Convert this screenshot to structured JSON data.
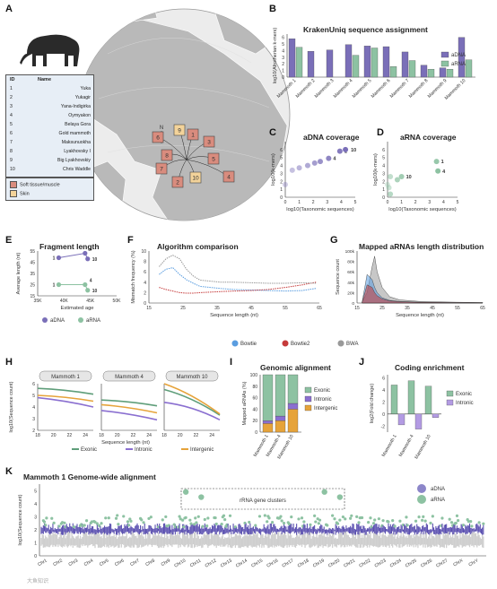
{
  "panel_labels": [
    "A",
    "B",
    "C",
    "D",
    "E",
    "F",
    "G",
    "H",
    "I",
    "J",
    "K"
  ],
  "panelA": {
    "header_id": "ID",
    "header_name": "Name",
    "sites": [
      {
        "id": "1",
        "name": "Yuka"
      },
      {
        "id": "2",
        "name": "Yukagir"
      },
      {
        "id": "3",
        "name": "Yana-Indigirka"
      },
      {
        "id": "4",
        "name": "Oymyakon"
      },
      {
        "id": "5",
        "name": "Belaya Gora"
      },
      {
        "id": "6",
        "name": "Gold mammoth"
      },
      {
        "id": "7",
        "name": "Maksunuokha"
      },
      {
        "id": "8",
        "name": "Lyakhovsky I"
      },
      {
        "id": "9",
        "name": "Big Lyakhovskiy"
      },
      {
        "id": "10",
        "name": "Chris Waddle"
      }
    ],
    "sample_types": [
      "Soft tissue/muscle",
      "Skin"
    ],
    "compass": "N",
    "colors": {
      "soft_tissue": "#d98c7e",
      "skin": "#f3d39a",
      "map_land": "#b9b9b9",
      "map_sea": "#ececec"
    }
  },
  "panelB": {
    "title": "KrakenUniq sequence assignment",
    "ylabel": "log10(Afrotherian k-mers)",
    "legend": [
      "aDNA",
      "aRNA"
    ],
    "chart_data": {
      "type": "bar",
      "categories": [
        "Mammoth 1",
        "Mammoth 2",
        "Mammoth 3",
        "Mammoth 4",
        "Mammoth 5",
        "Mammoth 6",
        "Mammoth 7",
        "Mammoth 8",
        "Mammoth 9",
        "Mammoth 10"
      ],
      "series": [
        {
          "name": "aDNA",
          "values": [
            5.8,
            3.9,
            4.1,
            4.9,
            4.7,
            4.6,
            3.8,
            1.8,
            1.4,
            6.0
          ]
        },
        {
          "name": "aRNA",
          "values": [
            4.5,
            null,
            null,
            3.3,
            4.4,
            1.6,
            2.5,
            1.2,
            1.2,
            2.6
          ]
        }
      ],
      "yticks": [
        0,
        1,
        2,
        3,
        4,
        5,
        6
      ],
      "ylim": [
        0,
        6.5
      ]
    }
  },
  "panelC": {
    "title": "aDNA coverage",
    "ylabel": "log10(k-mers)",
    "xlabel": "log10(Taxonomic sequences)",
    "chart_data": {
      "type": "scatter",
      "x": [
        0,
        0.5,
        1,
        1.6,
        2.1,
        2.5,
        3.1,
        3.9,
        4.3
      ],
      "y": [
        1.6,
        3.4,
        3.7,
        4.0,
        4.3,
        4.5,
        4.9,
        5.8,
        6.0
      ],
      "labels": [
        "",
        "",
        "",
        "",
        "",
        "",
        "4",
        "1",
        "10"
      ],
      "xticks": [
        0,
        1,
        2,
        3,
        4,
        5
      ],
      "yticks": [
        0,
        1,
        2,
        3,
        4,
        5,
        6
      ],
      "xlim": [
        0,
        5
      ],
      "ylim": [
        0,
        7
      ]
    }
  },
  "panelD": {
    "title": "aRNA coverage",
    "ylabel": "log10(k-mers)",
    "xlabel": "log10(Taxonomic sequences)",
    "chart_data": {
      "type": "scatter",
      "x": [
        0,
        0.1,
        0.2,
        0.2,
        0.7,
        1.0,
        3.5,
        3.6
      ],
      "y": [
        1.6,
        1.2,
        2.6,
        0.4,
        2.2,
        2.6,
        4.5,
        3.3
      ],
      "labels": [
        "",
        "",
        "",
        "",
        "",
        "10",
        "1",
        "4"
      ],
      "xticks": [
        0,
        1,
        2,
        3,
        4,
        5
      ],
      "yticks": [
        0,
        1,
        2,
        3,
        4,
        5,
        6
      ],
      "xlim": [
        0,
        5
      ],
      "ylim": [
        0,
        7
      ]
    }
  },
  "panelE": {
    "title": "Fragment length",
    "ylabel": "Average length (nt)",
    "xlabel": "Estimated age",
    "legend": [
      "aDNA",
      "aRNA"
    ],
    "chart_data": {
      "type": "line",
      "xticks": [
        "35K",
        "40K",
        "45K",
        "50K"
      ],
      "yticks": [
        15,
        25,
        35,
        45,
        55
      ],
      "xlim": [
        35000,
        50000
      ],
      "ylim": [
        15,
        55
      ],
      "series": [
        {
          "name": "aDNA",
          "points": [
            [
              39000,
              49
            ],
            [
              44000,
              53
            ],
            [
              44500,
              48
            ]
          ],
          "labels": [
            "1",
            "4",
            "10"
          ]
        },
        {
          "name": "aRNA",
          "points": [
            [
              39000,
              25
            ],
            [
              44000,
              25
            ],
            [
              44500,
              20
            ]
          ],
          "labels": [
            "1",
            "4",
            "10"
          ]
        }
      ]
    }
  },
  "panelF": {
    "title": "Algorithm comparison",
    "ylabel": "Mismatch frequency (%)",
    "xlabel": "Sequence length (nt)",
    "legend": [
      "Bowtie",
      "Bowtie2",
      "BWA"
    ],
    "chart_data": {
      "type": "line",
      "xticks": [
        15,
        25,
        35,
        45,
        55,
        65
      ],
      "yticks": [
        0,
        2,
        4,
        6,
        8,
        10
      ],
      "xlim": [
        15,
        65
      ],
      "ylim": [
        0,
        10
      ],
      "x": [
        18,
        20,
        22,
        24,
        26,
        28,
        30,
        33,
        36,
        40,
        45,
        50,
        55,
        60,
        64
      ],
      "series": [
        {
          "name": "Bowtie",
          "values": [
            5.5,
            6.5,
            6.8,
            5.5,
            4.5,
            3.8,
            3.2,
            3.0,
            2.8,
            2.6,
            2.5,
            2.4,
            2.3,
            2.4,
            2.8
          ]
        },
        {
          "name": "Bowtie2",
          "values": [
            3.0,
            2.6,
            2.3,
            2.0,
            1.9,
            1.9,
            2.0,
            2.1,
            2.2,
            2.3,
            2.4,
            2.6,
            3.0,
            3.5,
            4.0
          ]
        },
        {
          "name": "BWA",
          "values": [
            7.0,
            8.5,
            9.2,
            8.5,
            6.5,
            5.2,
            4.4,
            4.2,
            4.0,
            4.0,
            3.9,
            3.8,
            3.8,
            3.9,
            3.8
          ]
        }
      ]
    }
  },
  "panelG": {
    "title": "Mapped aRNAs length distribution",
    "ylabel": "Sequence count",
    "xlabel": "Sequence length (nt)",
    "chart_data": {
      "type": "area",
      "xticks": [
        15,
        25,
        35,
        45,
        55,
        65
      ],
      "yticks": [
        "0",
        "20k",
        "40k",
        "60k",
        "80k",
        "100k"
      ],
      "xlim": [
        15,
        65
      ],
      "ylim": [
        0,
        100000
      ],
      "x": [
        17,
        19,
        21,
        22,
        23,
        25,
        28,
        32,
        40,
        55,
        65
      ],
      "series": [
        {
          "name": "BWA",
          "values": [
            2000,
            20000,
            70000,
            90000,
            60000,
            30000,
            12000,
            6000,
            3000,
            1500,
            1000
          ]
        },
        {
          "name": "Bowtie",
          "values": [
            1000,
            55000,
            45000,
            30000,
            20000,
            10000,
            5000,
            3000,
            1500,
            800,
            500
          ]
        },
        {
          "name": "Bowtie2",
          "values": [
            1000,
            35000,
            30000,
            20000,
            14000,
            8000,
            4000,
            2500,
            1200,
            700,
            400
          ]
        }
      ]
    }
  },
  "panelH": {
    "ylabel": "log10(Sequence count)",
    "xlabel": "Sequence length (nt)",
    "facets": [
      "Mammoth 1",
      "Mammoth 4",
      "Mammoth 10"
    ],
    "legend": [
      "Exonic",
      "Intronic",
      "Intergenic"
    ],
    "chart_data": {
      "type": "line",
      "xticks": [
        18,
        20,
        22,
        24
      ],
      "yticks": [
        2,
        3,
        4,
        5,
        6
      ],
      "xlim": [
        18,
        25
      ],
      "ylim": [
        2,
        6
      ],
      "panels": [
        {
          "facet": "Mammoth 1",
          "x": [
            18,
            25
          ],
          "series": [
            {
              "name": "Exonic",
              "values": [
                5.6,
                5.1
              ]
            },
            {
              "name": "Intronic",
              "values": [
                4.8,
                4.0
              ]
            },
            {
              "name": "Intergenic",
              "values": [
                5.0,
                4.5
              ]
            }
          ]
        },
        {
          "facet": "Mammoth 4",
          "x": [
            18,
            25
          ],
          "series": [
            {
              "name": "Exonic",
              "values": [
                4.6,
                4.1
              ]
            },
            {
              "name": "Intronic",
              "values": [
                3.7,
                2.9
              ]
            },
            {
              "name": "Intergenic",
              "values": [
                4.2,
                3.5
              ]
            }
          ]
        },
        {
          "facet": "Mammoth 10",
          "x": [
            18,
            25
          ],
          "series": [
            {
              "name": "Exonic",
              "values": [
                5.5,
                3.3
              ]
            },
            {
              "name": "Intronic",
              "values": [
                4.4,
                2.9
              ]
            },
            {
              "name": "Intergenic",
              "values": [
                6.0,
                3.4
              ]
            }
          ]
        }
      ]
    }
  },
  "panelI": {
    "title": "Genomic alignment",
    "ylabel": "Mapped aRNAs (%)",
    "legend": [
      "Exonic",
      "Intronic",
      "Intergenic"
    ],
    "chart_data": {
      "type": "bar",
      "stacked": true,
      "categories": [
        "Mammoth 1",
        "Mammoth 4",
        "Mammoth 10"
      ],
      "series": [
        {
          "name": "Intergenic",
          "values": [
            15,
            20,
            40
          ]
        },
        {
          "name": "Intronic",
          "values": [
            5,
            8,
            10
          ]
        },
        {
          "name": "Exonic",
          "values": [
            80,
            72,
            50
          ]
        }
      ],
      "yticks": [
        0,
        20,
        40,
        60,
        80,
        100
      ],
      "ylim": [
        0,
        100
      ]
    }
  },
  "panelJ": {
    "title": "Coding enrichment",
    "ylabel": "log2(Fold change)",
    "legend": [
      "Exonic",
      "Intronic"
    ],
    "chart_data": {
      "type": "bar",
      "categories": [
        "Mammoth 1",
        "Mammoth 4",
        "Mammoth 10"
      ],
      "series": [
        {
          "name": "Exonic",
          "values": [
            4.8,
            5.5,
            4.6
          ]
        },
        {
          "name": "Intronic",
          "values": [
            -1.8,
            -2.5,
            -0.6
          ]
        }
      ],
      "yticks": [
        -2,
        0,
        2,
        4,
        6
      ],
      "ylim": [
        -3,
        6.5
      ]
    }
  },
  "panelK": {
    "title": "Mammoth 1 Genome-wide alignment",
    "ylabel": "log10(Sequence count)",
    "legend": [
      "aDNA",
      "aRNA"
    ],
    "annotation": "rRNA gene clusters",
    "chart_data": {
      "type": "scatter",
      "chromosomes": [
        "Chr1",
        "Chr2",
        "Chr3",
        "Chr4",
        "Chr5",
        "Chr6",
        "Chr7",
        "Chr8",
        "Chr9",
        "Chr10",
        "Chr11",
        "Chr12",
        "Chr13",
        "Chr14",
        "Chr15",
        "Chr16",
        "Chr17",
        "Chr18",
        "Chr19",
        "Chr20",
        "Chr21",
        "Chr22",
        "Chr23",
        "Chr24",
        "Chr25",
        "Chr26",
        "Chr27",
        "ChrX",
        "ChrY"
      ],
      "yticks": [
        0,
        1,
        2,
        3,
        4,
        5
      ],
      "ylim": [
        0,
        5.5
      ],
      "peaks": [
        {
          "chr": "Chr10",
          "y": 4.9
        },
        {
          "chr": "Chr11",
          "y": 4.5
        },
        {
          "chr": "Chr19",
          "y": 4.9
        },
        {
          "chr": "Chr20",
          "y": 4.5
        }
      ]
    }
  },
  "watermark": "大鱼知识"
}
